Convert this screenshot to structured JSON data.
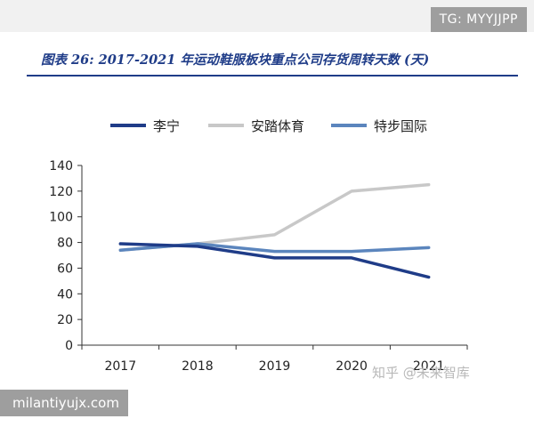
{
  "watermark_top": "TG: MYYJJPP",
  "title": "图表 26: 2017-2021 年运动鞋服板块重点公司存货周转天数 (天)",
  "watermark_bottom_right": "知乎 @未来智库",
  "watermark_site": "milantiyujx.com",
  "chart_data": {
    "type": "line",
    "x": [
      "2017",
      "2018",
      "2019",
      "2020",
      "2021"
    ],
    "ylim": [
      0,
      140
    ],
    "yticks": [
      0,
      20,
      40,
      60,
      80,
      100,
      120,
      140
    ],
    "ytick_labels": [
      "0",
      "20",
      "40",
      "60",
      "80",
      "100",
      "120",
      "140"
    ],
    "grid": false,
    "legend_position": "top",
    "series": [
      {
        "name": "李宁",
        "color": "#1f3c88",
        "values": [
          79,
          77,
          68,
          68,
          53
        ]
      },
      {
        "name": "安踏体育",
        "color": "#c8c8c8",
        "values": [
          74,
          79,
          86,
          120,
          125
        ]
      },
      {
        "name": "特步国际",
        "color": "#5b85bd",
        "values": [
          74,
          79,
          73,
          73,
          76
        ]
      }
    ]
  }
}
